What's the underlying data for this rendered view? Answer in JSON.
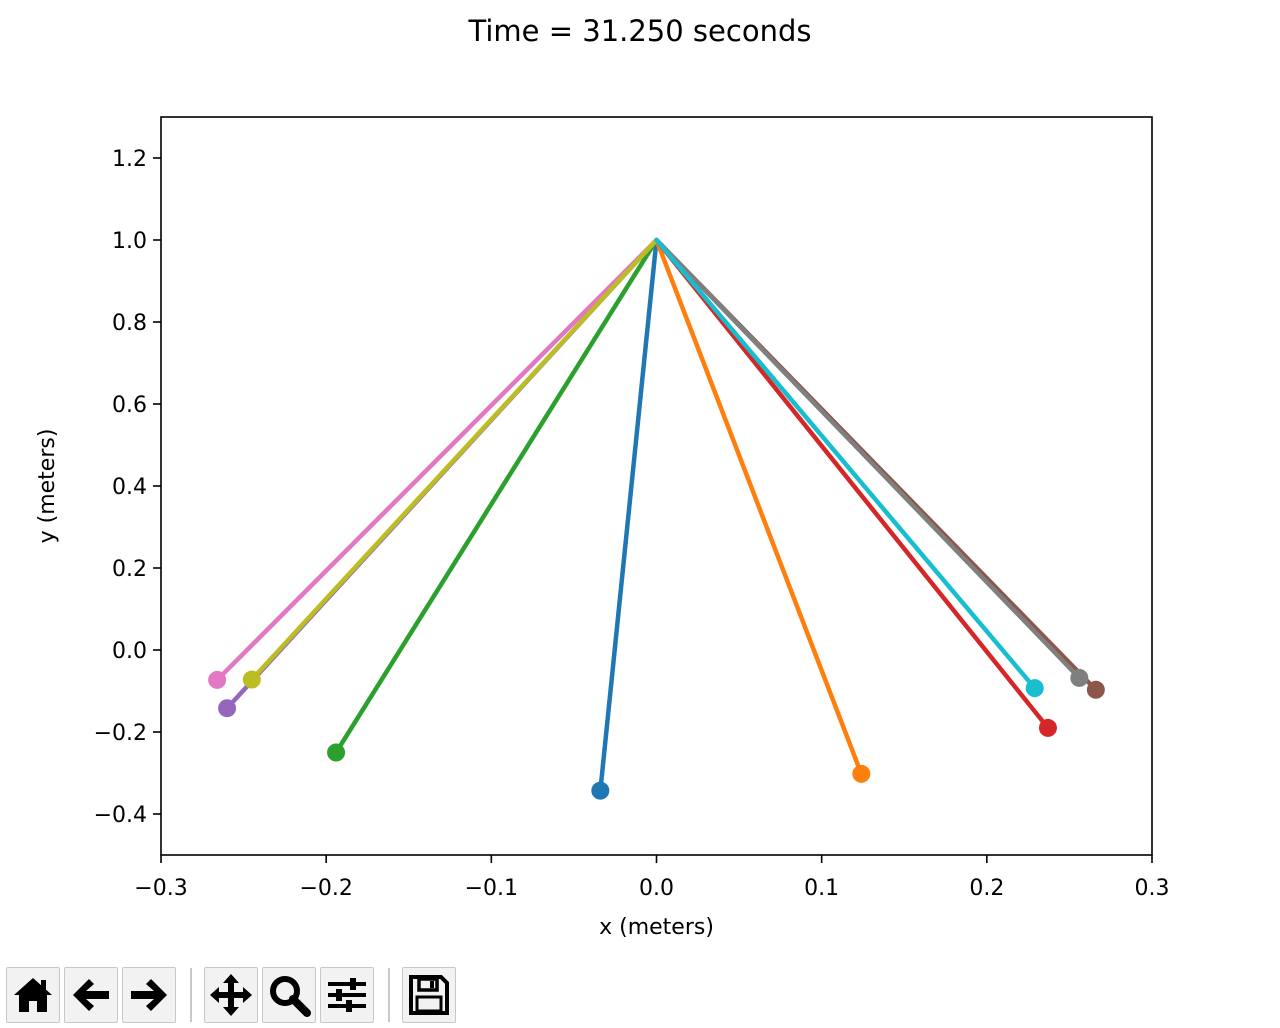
{
  "figure": {
    "title": "Time = 31.250 seconds"
  },
  "toolbar": {
    "buttons": [
      {
        "name": "home-icon",
        "label": "Home"
      },
      {
        "name": "back-arrow-icon",
        "label": "Back"
      },
      {
        "name": "forward-arrow-icon",
        "label": "Forward"
      },
      {
        "name": "pan-move-icon",
        "label": "Pan"
      },
      {
        "name": "zoom-magnifier-icon",
        "label": "Zoom"
      },
      {
        "name": "configure-subplots-icon",
        "label": "Subplots"
      },
      {
        "name": "save-floppy-icon",
        "label": "Save"
      }
    ]
  },
  "chart_data": {
    "type": "line",
    "title": "Time = 31.250 seconds",
    "xlabel": "x (meters)",
    "ylabel": "y (meters)",
    "xlim": [
      -0.3,
      0.3
    ],
    "ylim": [
      -0.5,
      1.3
    ],
    "xticks": [
      -0.3,
      -0.2,
      -0.1,
      0.0,
      0.1,
      0.2,
      0.3
    ],
    "xtick_labels": [
      "−0.3",
      "−0.2",
      "−0.1",
      "0.0",
      "0.1",
      "0.2",
      "0.3"
    ],
    "yticks": [
      -0.4,
      -0.2,
      0.0,
      0.2,
      0.4,
      0.6,
      0.8,
      1.0,
      1.2
    ],
    "ytick_labels": [
      "−0.4",
      "−0.2",
      "0.0",
      "0.2",
      "0.4",
      "0.6",
      "0.8",
      "1.0",
      "1.2"
    ],
    "grid": false,
    "pivot": {
      "x": 0.0,
      "y": 1.0
    },
    "series": [
      {
        "color": "#1f77b4",
        "x": [
          0.0,
          -0.034
        ],
        "y": [
          1.0,
          -0.343
        ]
      },
      {
        "color": "#ff7f0e",
        "x": [
          0.0,
          0.124
        ],
        "y": [
          1.0,
          -0.302
        ]
      },
      {
        "color": "#2ca02c",
        "x": [
          0.0,
          -0.194
        ],
        "y": [
          1.0,
          -0.25
        ]
      },
      {
        "color": "#d62728",
        "x": [
          0.0,
          0.237
        ],
        "y": [
          1.0,
          -0.19
        ]
      },
      {
        "color": "#9467bd",
        "x": [
          0.0,
          -0.26
        ],
        "y": [
          1.0,
          -0.142
        ]
      },
      {
        "color": "#8c564b",
        "x": [
          0.0,
          0.266
        ],
        "y": [
          1.0,
          -0.097
        ]
      },
      {
        "color": "#e377c2",
        "x": [
          0.0,
          -0.266
        ],
        "y": [
          1.0,
          -0.073
        ]
      },
      {
        "color": "#7f7f7f",
        "x": [
          0.0,
          0.256
        ],
        "y": [
          1.0,
          -0.068
        ]
      },
      {
        "color": "#bcbd22",
        "x": [
          0.0,
          -0.245
        ],
        "y": [
          1.0,
          -0.072
        ]
      },
      {
        "color": "#17becf",
        "x": [
          0.0,
          0.229
        ],
        "y": [
          1.0,
          -0.093
        ]
      }
    ]
  }
}
